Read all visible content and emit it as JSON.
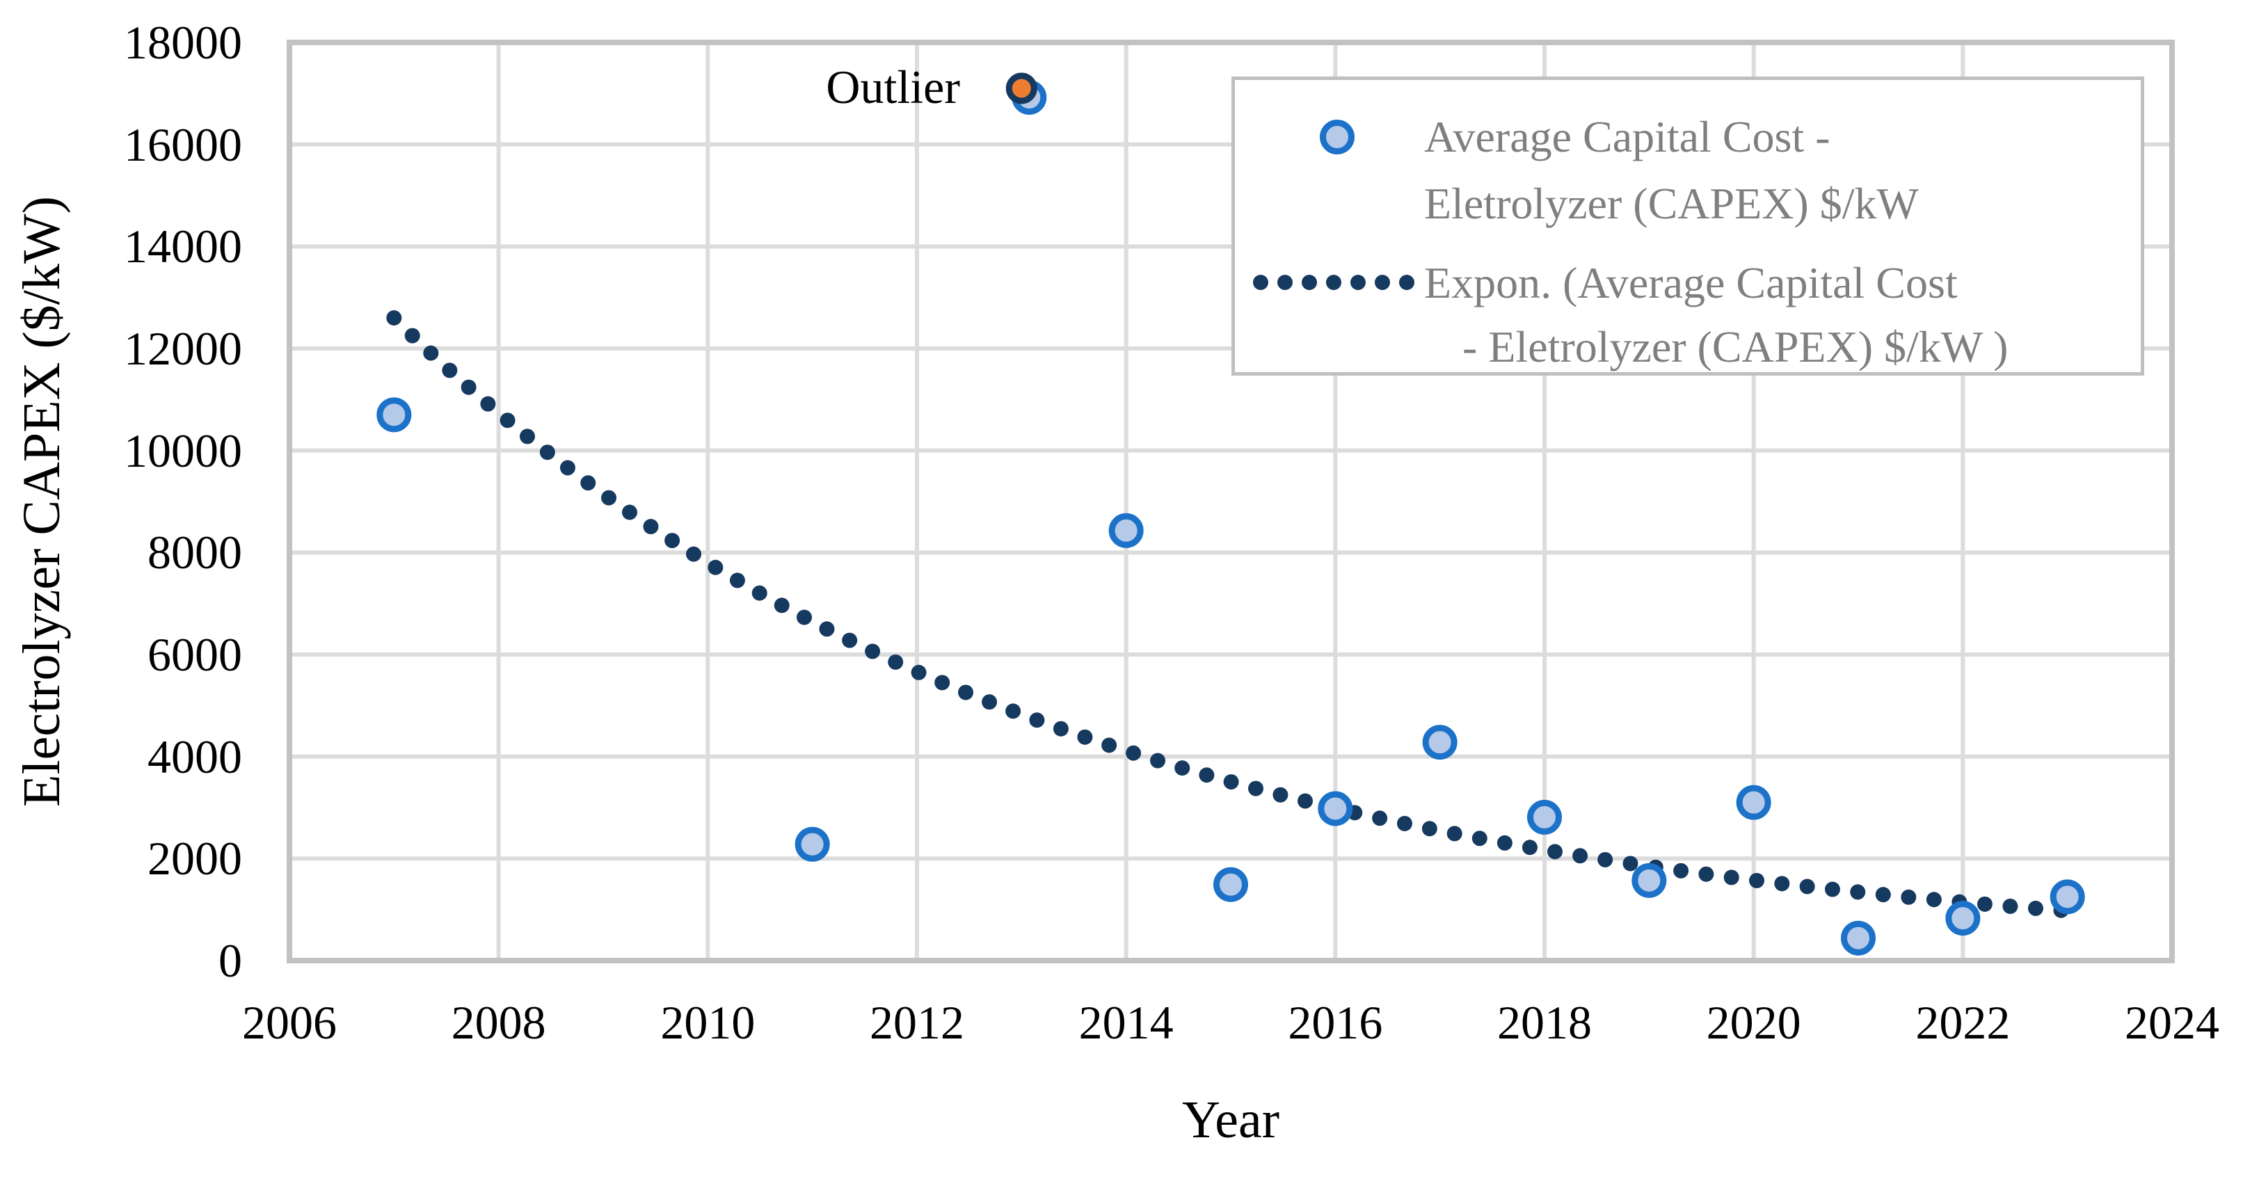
{
  "figure": {
    "outlier_label": "Outlier"
  },
  "legend": {
    "entries": [
      {
        "marker": "scatter-point-marker",
        "lines": [
          "Average Capital Cost -",
          "Eletrolyzer (CAPEX) $/kW"
        ]
      },
      {
        "marker": "dotted-trendline-marker",
        "lines": [
          "Expon. (Average Capital Cost",
          "- Eletrolyzer (CAPEX) $/kW )"
        ]
      }
    ]
  },
  "colors": {
    "marker_fill": "#B5C9E8",
    "marker_stroke": "#1C72C8",
    "trendline": "#16395F",
    "outlier_fill": "#ED7D31",
    "outlier_ring": "#16395F",
    "gridline": "#DCDCDC",
    "frame": "#C2C2C2",
    "legend_text": "#7F7F7F",
    "legend_border": "#BFBFBF",
    "text": "#000000"
  },
  "chart_data": {
    "type": "scatter",
    "title": "",
    "xlabel": "Year",
    "ylabel": "Electrolyzer CAPEX ($/kW)",
    "xlim": [
      2006,
      2024
    ],
    "ylim": [
      0,
      18000
    ],
    "xticks": [
      2006,
      2008,
      2010,
      2012,
      2014,
      2016,
      2018,
      2020,
      2022,
      2024
    ],
    "yticks": [
      0,
      2000,
      4000,
      6000,
      8000,
      10000,
      12000,
      14000,
      16000,
      18000
    ],
    "grid": true,
    "legend_position": "top-right",
    "series": [
      {
        "name": "Average Capital Cost - Eletrolyzer (CAPEX) $/kW",
        "type": "scatter",
        "points": [
          {
            "x": 2007,
            "y": 10700
          },
          {
            "x": 2011,
            "y": 2280
          },
          {
            "x": 2013,
            "y": 17100,
            "outlier": true
          },
          {
            "x": 2014,
            "y": 8430
          },
          {
            "x": 2015,
            "y": 1490
          },
          {
            "x": 2016,
            "y": 2980
          },
          {
            "x": 2017,
            "y": 4280
          },
          {
            "x": 2018,
            "y": 2810
          },
          {
            "x": 2019,
            "y": 1570
          },
          {
            "x": 2020,
            "y": 3100
          },
          {
            "x": 2021,
            "y": 440
          },
          {
            "x": 2022,
            "y": 830
          },
          {
            "x": 2023,
            "y": 1250
          }
        ]
      },
      {
        "name": "Expon. (Average Capital Cost - Eletrolyzer (CAPEX) $/kW )",
        "type": "exponential-trendline",
        "x_start": 2007,
        "x_end": 2023.1,
        "y_start": 12600,
        "y_end": 960
      }
    ],
    "annotations": [
      {
        "text": "Outlier",
        "x": 2013,
        "y": 17100
      }
    ]
  }
}
